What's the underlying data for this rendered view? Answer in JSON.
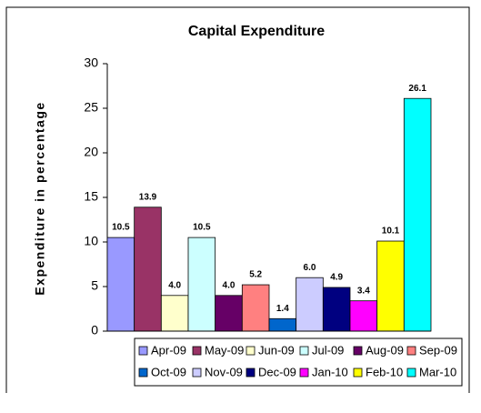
{
  "chart_data": {
    "type": "bar",
    "title": "Capital Expenditure",
    "y_label": "Expenditure in percentage",
    "ylim": [
      0,
      30
    ],
    "yticks": [
      0,
      5,
      10,
      15,
      20,
      25,
      30
    ],
    "series": [
      {
        "name": "Apr-09",
        "color": "#9999ff",
        "values": [
          10.5
        ],
        "value_labels": [
          "10.5"
        ]
      },
      {
        "name": "May-09",
        "color": "#993366",
        "values": [
          13.9
        ],
        "value_labels": [
          "13.9"
        ]
      },
      {
        "name": "Jun-09",
        "color": "#ffffcc",
        "values": [
          4.0
        ],
        "value_labels": [
          "4.0"
        ]
      },
      {
        "name": "Jul-09",
        "color": "#ccffff",
        "values": [
          10.5
        ],
        "value_labels": [
          "10.5"
        ]
      },
      {
        "name": "Aug-09",
        "color": "#660066",
        "values": [
          4.0
        ],
        "value_labels": [
          "4.0"
        ]
      },
      {
        "name": "Sep-09",
        "color": "#ff8080",
        "values": [
          5.2
        ],
        "value_labels": [
          "5.2"
        ]
      },
      {
        "name": "Oct-09",
        "color": "#0066cc",
        "values": [
          1.4
        ],
        "value_labels": [
          "1.4"
        ]
      },
      {
        "name": "Nov-09",
        "color": "#ccccff",
        "values": [
          6.0
        ],
        "value_labels": [
          "6.0"
        ]
      },
      {
        "name": "Dec-09",
        "color": "#000080",
        "values": [
          4.9
        ],
        "value_labels": [
          "4.9"
        ]
      },
      {
        "name": "Jan-10",
        "color": "#ff00ff",
        "values": [
          3.4
        ],
        "value_labels": [
          "3.4"
        ]
      },
      {
        "name": "Feb-10",
        "color": "#ffff00",
        "values": [
          10.1
        ],
        "value_labels": [
          "10.1"
        ]
      },
      {
        "name": "Mar-10",
        "color": "#00ffff",
        "values": [
          26.1
        ],
        "value_labels": [
          "26.1"
        ]
      }
    ]
  }
}
